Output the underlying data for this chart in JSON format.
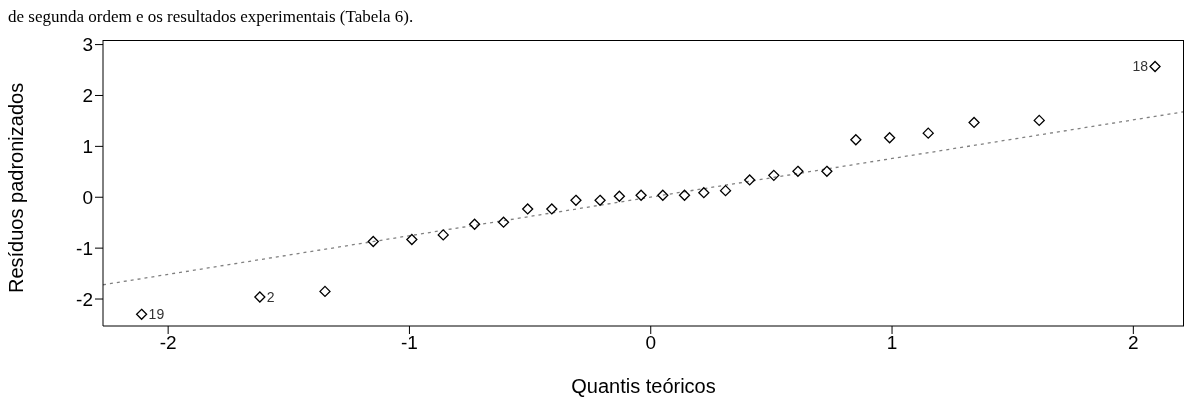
{
  "chart_data": {
    "type": "scatter",
    "xlabel": "Quantis teóricos",
    "ylabel": "Resíduos padronizados",
    "xlim": [
      -2.27,
      2.21
    ],
    "ylim": [
      -2.53,
      3.09
    ],
    "xticks": [
      -2,
      -1,
      0,
      1,
      2
    ],
    "yticks": [
      -2,
      -1,
      0,
      1,
      2,
      3
    ],
    "annotations": [
      "de segunda ordem e os resultados experimentais (Tabela 6).",
      {
        "text": "19",
        "x": -2.11,
        "y": -2.3
      },
      {
        "text": "2",
        "x": -1.62,
        "y": -1.96
      },
      {
        "text": "18",
        "x": 2.09,
        "y": 2.57
      }
    ],
    "series": [
      {
        "color": "#000000",
        "marker": "diamond",
        "x": [
          -2.11,
          -1.62,
          -1.35,
          -1.15,
          -0.99,
          -0.86,
          -0.73,
          -0.61,
          -0.51,
          -0.41,
          -0.31,
          -0.21,
          -0.13,
          -0.04,
          0.05,
          0.14,
          0.22,
          0.31,
          0.41,
          0.51,
          0.61,
          0.73,
          0.85,
          0.99,
          1.15,
          1.34,
          1.61,
          2.09
        ],
        "values": [
          -2.3,
          -1.96,
          -1.85,
          -0.87,
          -0.83,
          -0.74,
          -0.53,
          -0.49,
          -0.23,
          -0.23,
          -0.06,
          -0.06,
          0.02,
          0.04,
          0.04,
          0.04,
          0.09,
          0.13,
          0.34,
          0.43,
          0.51,
          0.51,
          1.13,
          1.17,
          1.26,
          1.47,
          1.51,
          2.57
        ]
      },
      {
        "type": "line",
        "color": "#808080",
        "marker": "none",
        "line_style": "dotted",
        "x": [
          -2.27,
          2.21
        ],
        "values": [
          -1.72,
          1.68
        ]
      }
    ]
  }
}
